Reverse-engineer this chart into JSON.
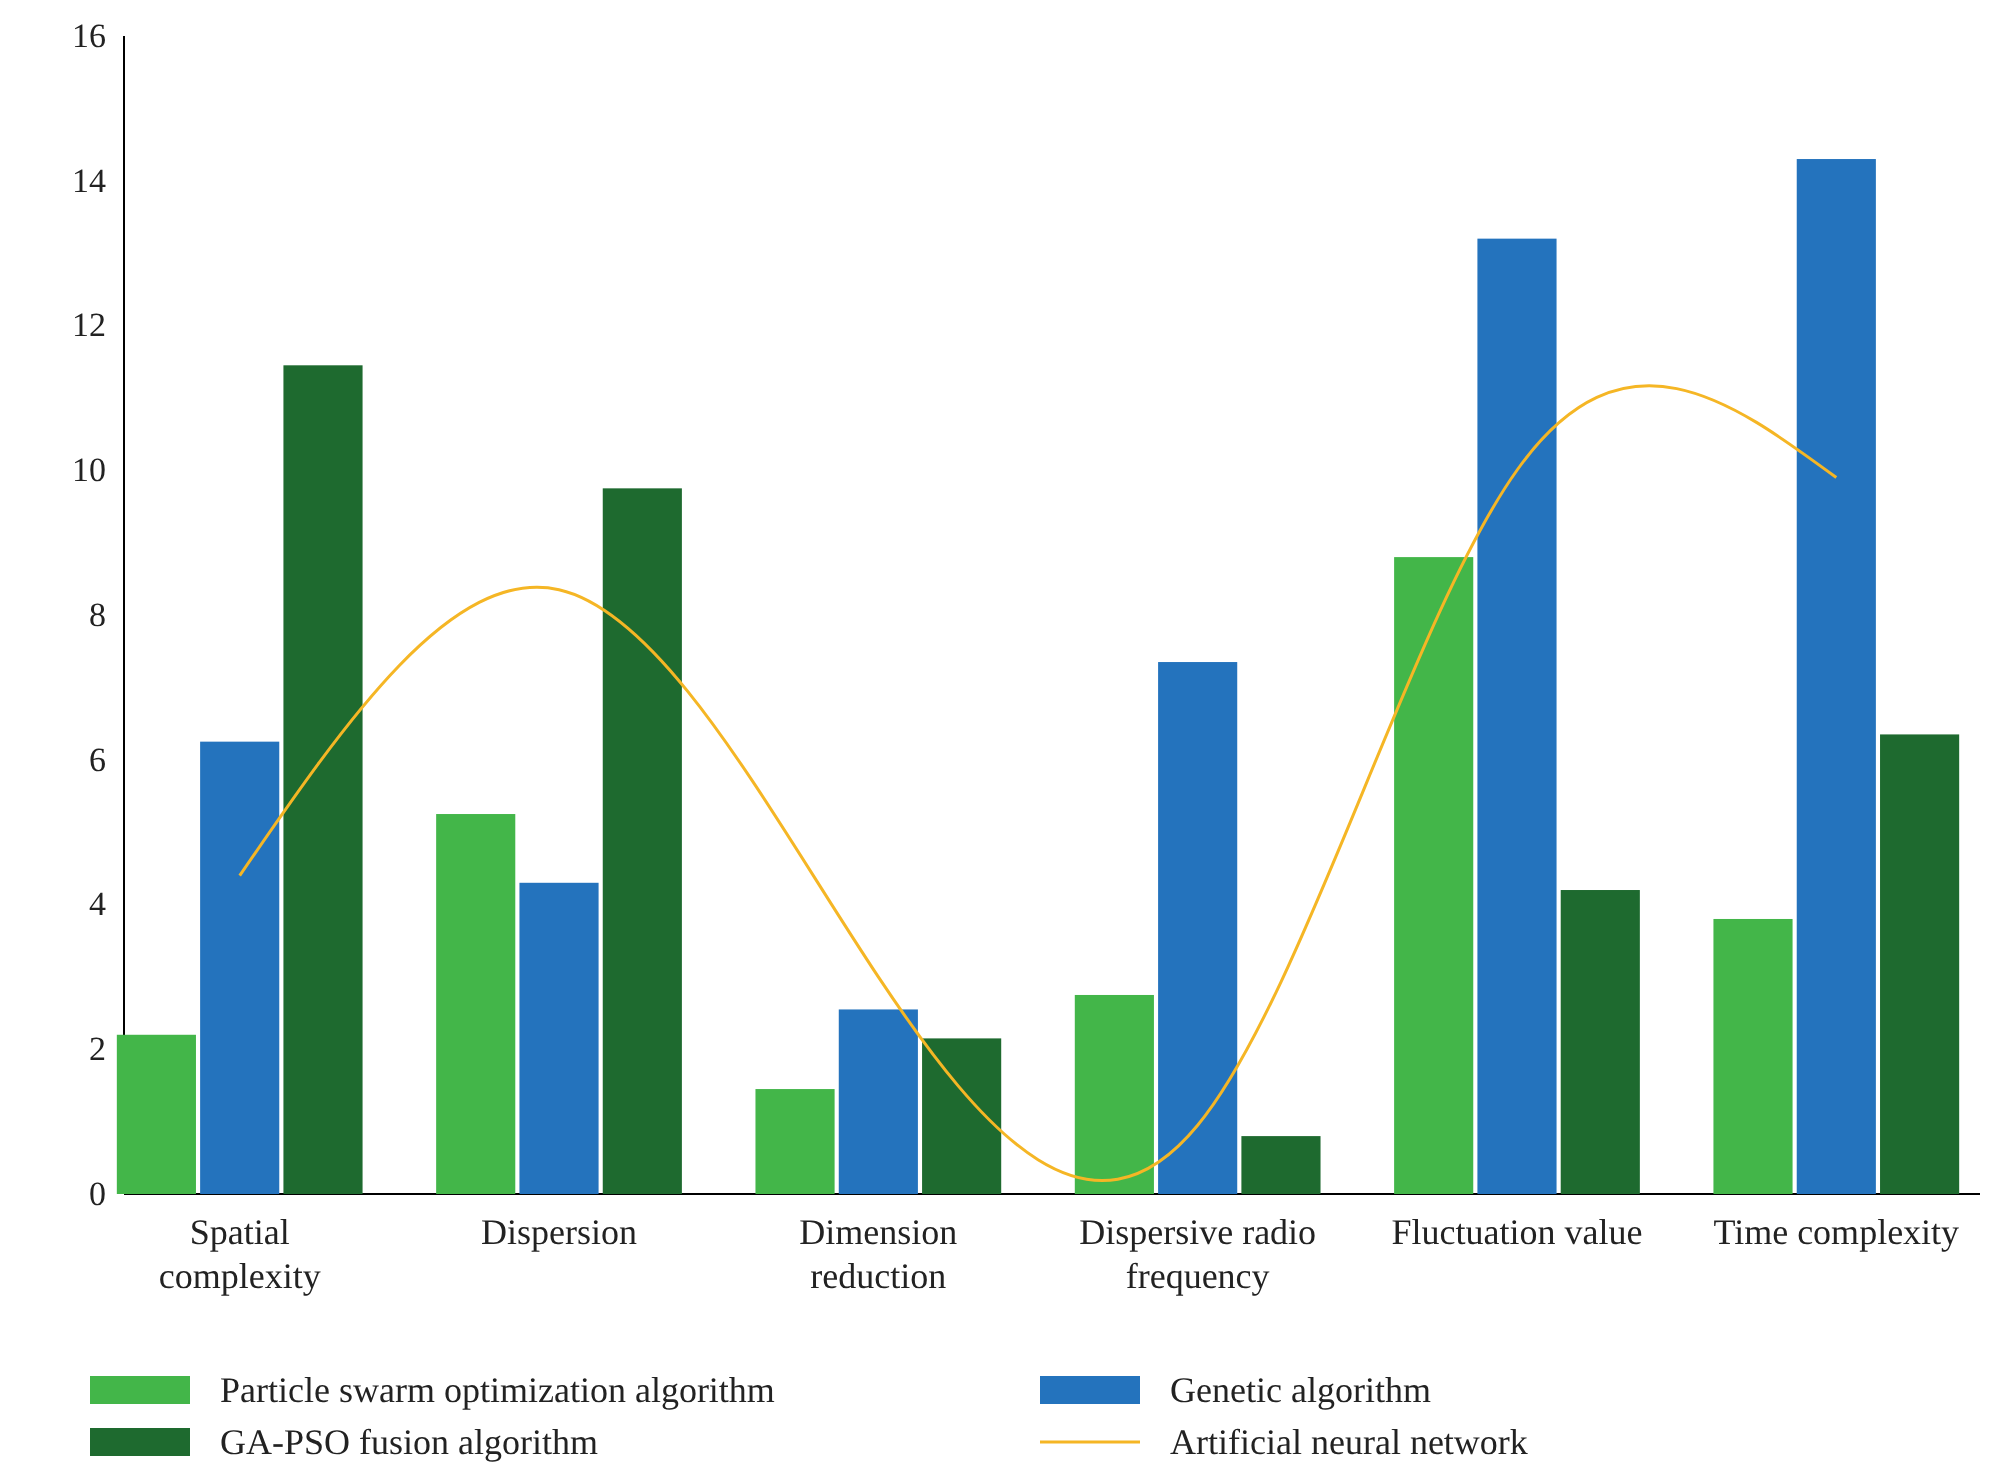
{
  "chart_data": {
    "type": "bar",
    "categories": [
      "Spatial complexity",
      "Dispersion",
      "Dimension reduction",
      "Dispersive radio frequency",
      "Fluctuation value",
      "Time complexity"
    ],
    "ylim": [
      0,
      16
    ],
    "yticks": [
      0,
      2,
      4,
      6,
      8,
      10,
      12,
      14,
      16
    ],
    "grid": false,
    "legend": "bottom",
    "series": [
      {
        "name": "Particle swarm optimization algorithm",
        "color": "#43b649",
        "values": [
          2.2,
          5.25,
          1.45,
          2.75,
          8.8,
          3.8
        ]
      },
      {
        "name": "Genetic algorithm",
        "color": "#2473bd",
        "values": [
          6.25,
          4.3,
          2.55,
          7.35,
          13.2,
          14.3
        ]
      },
      {
        "name": "GA-PSO fusion algorithm",
        "color": "#1e6a2f",
        "values": [
          11.45,
          9.75,
          2.15,
          0.8,
          4.2,
          6.35
        ]
      },
      {
        "name": "Artificial neural network",
        "color": "#f5b625",
        "type": "line",
        "values": [
          4.4,
          8.35,
          3.0,
          0.95,
          10.0,
          9.9
        ]
      }
    ]
  }
}
